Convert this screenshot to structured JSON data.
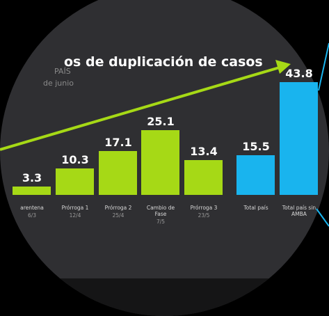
{
  "chart_data": {
    "type": "bar",
    "title": "os de duplicación de casos",
    "subtitle": "PAÍS",
    "note": "de junio",
    "categories": [
      "arentena",
      "Prórroga 1",
      "Prórroga 2",
      "Cambio de Fase",
      "Prórroga 3",
      "Total país",
      "Total país sin AMBA"
    ],
    "dates": [
      "6/3",
      "12/4",
      "25/4",
      "7/5",
      "23/5",
      null,
      null
    ],
    "values": [
      3.3,
      10.3,
      17.1,
      25.1,
      13.4,
      15.5,
      43.8
    ],
    "colors": [
      "#a6d916",
      "#a6d916",
      "#a6d916",
      "#a6d916",
      "#a6d916",
      "#19b4ee",
      "#19b4ee"
    ]
  }
}
